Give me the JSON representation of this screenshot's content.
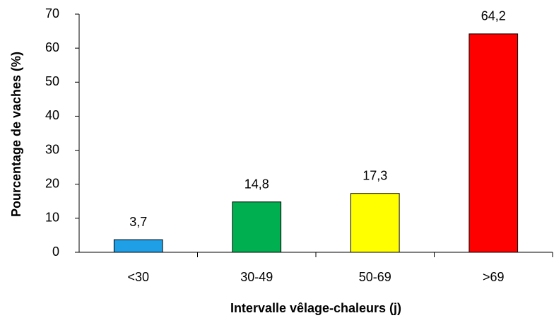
{
  "chart_data": {
    "type": "bar",
    "x_label": "Intervalle vêlage-chaleurs (j)",
    "y_label": "Pourcentage de vaches (%)",
    "categories": [
      "<30",
      "30-49",
      "50-69",
      ">69"
    ],
    "values": [
      3.7,
      14.8,
      17.3,
      64.2
    ],
    "value_labels": [
      "3,7",
      "14,8",
      "17,3",
      "64,2"
    ],
    "colors": [
      "#1e9fe6",
      "#00b050",
      "#ffff00",
      "#ff0000"
    ],
    "ylim": [
      0,
      70
    ],
    "yticks": [
      0,
      10,
      20,
      30,
      40,
      50,
      60,
      70
    ],
    "grid": false
  }
}
